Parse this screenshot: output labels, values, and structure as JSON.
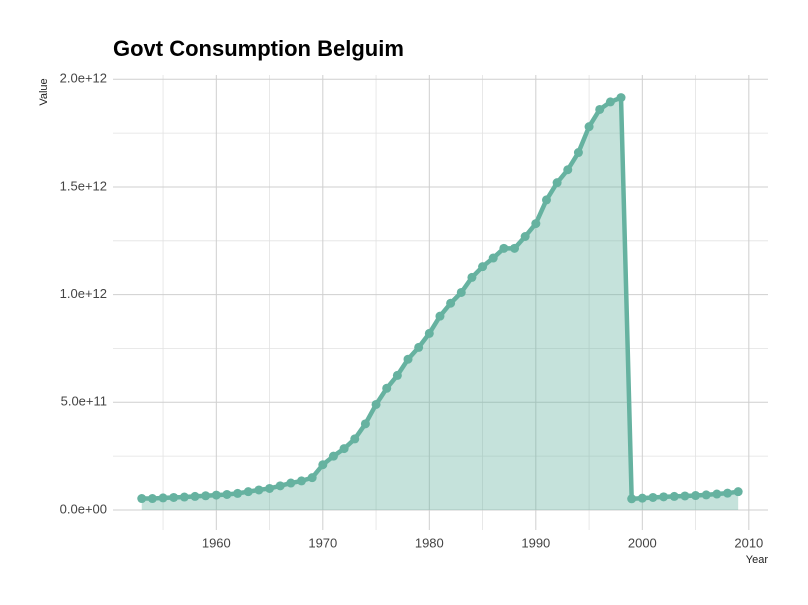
{
  "chart_data": {
    "type": "area-line",
    "title": "Govt Consumption Belguim",
    "x_label": "Year",
    "y_label": "Value",
    "x": [
      1953,
      1954,
      1955,
      1956,
      1957,
      1958,
      1959,
      1960,
      1961,
      1962,
      1963,
      1964,
      1965,
      1966,
      1967,
      1968,
      1969,
      1970,
      1971,
      1972,
      1973,
      1974,
      1975,
      1976,
      1977,
      1978,
      1979,
      1980,
      1981,
      1982,
      1983,
      1984,
      1985,
      1986,
      1987,
      1988,
      1989,
      1990,
      1991,
      1992,
      1993,
      1994,
      1995,
      1996,
      1997,
      1998,
      1999,
      2000,
      2001,
      2002,
      2003,
      2004,
      2005,
      2006,
      2007,
      2008,
      2009
    ],
    "series": [
      {
        "name": "Value",
        "color": "#66b2a0",
        "values": [
          53000000000.0,
          53000000000.0,
          56000000000.0,
          58000000000.0,
          60000000000.0,
          63000000000.0,
          66000000000.0,
          69000000000.0,
          72000000000.0,
          77000000000.0,
          85000000000.0,
          93000000000.0,
          100000000000.0,
          112000000000.0,
          125000000000.0,
          135000000000.0,
          150000000000.0,
          210000000000.0,
          250000000000.0,
          285000000000.0,
          330000000000.0,
          400000000000.0,
          490000000000.0,
          565000000000.0,
          625000000000.0,
          700000000000.0,
          755000000000.0,
          820000000000.0,
          900000000000.0,
          960000000000.0,
          1010000000000.0,
          1080000000000.0,
          1130000000000.0,
          1170000000000.0,
          1215000000000.0,
          1215000000000.0,
          1270000000000.0,
          1330000000000.0,
          1440000000000.0,
          1520000000000.0,
          1580000000000.0,
          1660000000000.0,
          1780000000000.0,
          1860000000000.0,
          1895000000000.0,
          1915000000000.0,
          52000000000.0,
          55000000000.0,
          58000000000.0,
          61000000000.0,
          63000000000.0,
          65000000000.0,
          67000000000.0,
          70000000000.0,
          74000000000.0,
          78000000000.0,
          85000000000.0
        ]
      }
    ],
    "xlim": [
      1950.3,
      2011.8
    ],
    "xticks": [
      1960,
      1970,
      1980,
      1990,
      2000,
      2010
    ],
    "x_minor_ticks": [
      1955,
      1965,
      1975,
      1985,
      1995,
      2005
    ],
    "ylim": [
      -93000000000.0,
      2020000000000.0
    ],
    "yticks": [
      {
        "value": 0,
        "label": "0.0e+00"
      },
      {
        "value": 500000000000.0,
        "label": "5.0e+11"
      },
      {
        "value": 1000000000000.0,
        "label": "1.0e+12"
      },
      {
        "value": 1500000000000.0,
        "label": "1.5e+12"
      },
      {
        "value": 2000000000000.0,
        "label": "2.0e+12"
      }
    ],
    "y_minor_ticks": [
      250000000000.0,
      750000000000.0,
      1250000000000.0,
      1750000000000.0
    ],
    "grid": true
  }
}
